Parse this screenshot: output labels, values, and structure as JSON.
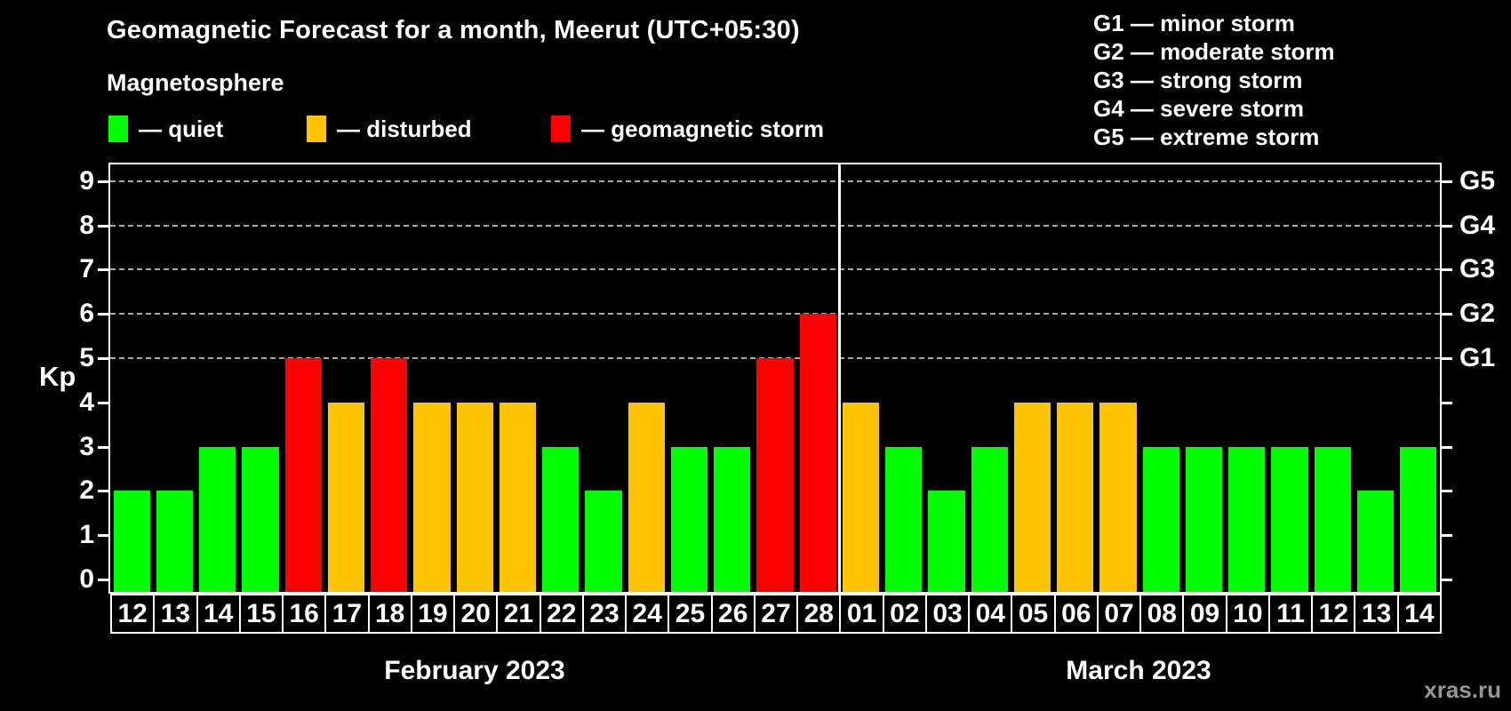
{
  "header": {
    "title": "Geomagnetic Forecast for a month, Meerut (UTC+05:30)",
    "subtitle": "Magnetosphere"
  },
  "legend": {
    "items": [
      {
        "label": "— quiet",
        "status": "quiet",
        "color": "#00ff00"
      },
      {
        "label": "— disturbed",
        "status": "disturbed",
        "color": "#ffc300"
      },
      {
        "label": "— geomagnetic storm",
        "status": "storm",
        "color": "#ff0000"
      }
    ]
  },
  "g_legend": {
    "items": [
      "G1 — minor storm",
      "G2 — moderate storm",
      "G3 — strong storm",
      "G4 — severe storm",
      "G5 — extreme storm"
    ]
  },
  "watermark": "xras.ru",
  "chart_data": {
    "type": "bar",
    "title": "Geomagnetic Forecast for a month, Meerut (UTC+05:30)",
    "subtitle": "Magnetosphere",
    "ylabel": "Kp",
    "yticks": [
      0,
      1,
      2,
      3,
      4,
      5,
      6,
      7,
      8,
      9
    ],
    "ylim": [
      -0.3,
      9.4
    ],
    "gridlines_at": [
      5,
      6,
      7,
      8,
      9
    ],
    "grid": "dashed horizontal at storm levels only",
    "right_axis_labels": [
      {
        "kp": 5,
        "label": "G1"
      },
      {
        "kp": 6,
        "label": "G2"
      },
      {
        "kp": 7,
        "label": "G3"
      },
      {
        "kp": 8,
        "label": "G4"
      },
      {
        "kp": 9,
        "label": "G5"
      }
    ],
    "months": [
      {
        "label": "February 2023",
        "days": 17
      },
      {
        "label": "March 2023",
        "days": 14
      }
    ],
    "categories": [
      "12",
      "13",
      "14",
      "15",
      "16",
      "17",
      "18",
      "19",
      "20",
      "21",
      "22",
      "23",
      "24",
      "25",
      "26",
      "27",
      "28",
      "01",
      "02",
      "03",
      "04",
      "05",
      "06",
      "07",
      "08",
      "09",
      "10",
      "11",
      "12",
      "13",
      "14"
    ],
    "values": [
      2,
      2,
      3,
      3,
      5,
      4,
      5,
      4,
      4,
      4,
      3,
      2,
      4,
      3,
      3,
      5,
      6,
      4,
      3,
      2,
      3,
      4,
      4,
      4,
      3,
      3,
      3,
      3,
      3,
      2,
      3
    ],
    "status": [
      "quiet",
      "quiet",
      "quiet",
      "quiet",
      "storm",
      "disturbed",
      "storm",
      "disturbed",
      "disturbed",
      "disturbed",
      "quiet",
      "quiet",
      "disturbed",
      "quiet",
      "quiet",
      "storm",
      "storm",
      "disturbed",
      "quiet",
      "quiet",
      "quiet",
      "disturbed",
      "disturbed",
      "disturbed",
      "quiet",
      "quiet",
      "quiet",
      "quiet",
      "quiet",
      "quiet",
      "quiet"
    ],
    "colors_by_status": {
      "quiet": "#00ff00",
      "disturbed": "#ffc300",
      "storm": "#ff0000"
    },
    "gridline_color": "#a9a9a9",
    "background_color": "#000000"
  }
}
